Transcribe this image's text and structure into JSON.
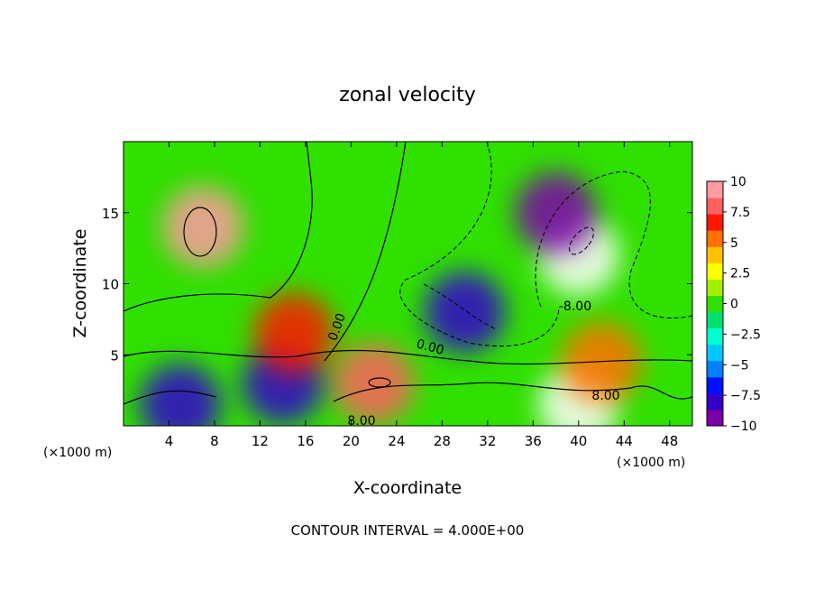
{
  "chart_data": {
    "type": "heatmap",
    "title": "zonal velocity",
    "xlabel": "X-coordinate",
    "ylabel": "Z-coordinate",
    "x_unit_label": "(×1000 m)",
    "x_ticks": [
      "4",
      "8",
      "12",
      "16",
      "20",
      "24",
      "28",
      "32",
      "36",
      "40",
      "44",
      "48"
    ],
    "x_tick_values": [
      4,
      8,
      12,
      16,
      20,
      24,
      28,
      32,
      36,
      40,
      44,
      48
    ],
    "y_ticks": [
      "5",
      "10",
      "15"
    ],
    "y_tick_values": [
      5,
      10,
      15
    ],
    "xlim": [
      0,
      50
    ],
    "ylim": [
      0,
      20
    ],
    "colorbar": {
      "ticks": [
        "10",
        "7.5",
        "5",
        "2.5",
        "0",
        "−2.5",
        "−5",
        "−7.5",
        "−10"
      ],
      "tick_values": [
        10,
        7.5,
        5,
        2.5,
        0,
        -2.5,
        -5,
        -7.5,
        -10
      ],
      "range": [
        -10,
        10
      ],
      "colors": [
        "#7a00a8",
        "#3300cc",
        "#0010ff",
        "#0080ff",
        "#00c8ff",
        "#00ffd0",
        "#00e070",
        "#30e000",
        "#a0f000",
        "#ffff00",
        "#ffc000",
        "#ff7000",
        "#ff1800",
        "#ff6060",
        "#ff9aa0"
      ]
    },
    "contour_labels": [
      "0.00",
      "0.00",
      "-8.00",
      "8.00",
      "8.00"
    ],
    "footer": "CONTOUR INTERVAL = 4.000E+00",
    "features": [
      {
        "x": 7,
        "y": 14,
        "u": 9
      },
      {
        "x": 40,
        "y": 12,
        "u": -12
      },
      {
        "x": 40,
        "y": 1.5,
        "u": 12
      },
      {
        "x": 22,
        "y": 3,
        "u": 8
      },
      {
        "x": 30,
        "y": 8,
        "u": -8
      },
      {
        "x": 5,
        "y": 1.5,
        "u": -8
      },
      {
        "x": 14,
        "y": 3,
        "u": -8
      },
      {
        "x": 15,
        "y": 6.5,
        "u": 6
      },
      {
        "x": 42,
        "y": 4.5,
        "u": 5
      },
      {
        "x": 38,
        "y": 15,
        "u": -9
      }
    ]
  }
}
